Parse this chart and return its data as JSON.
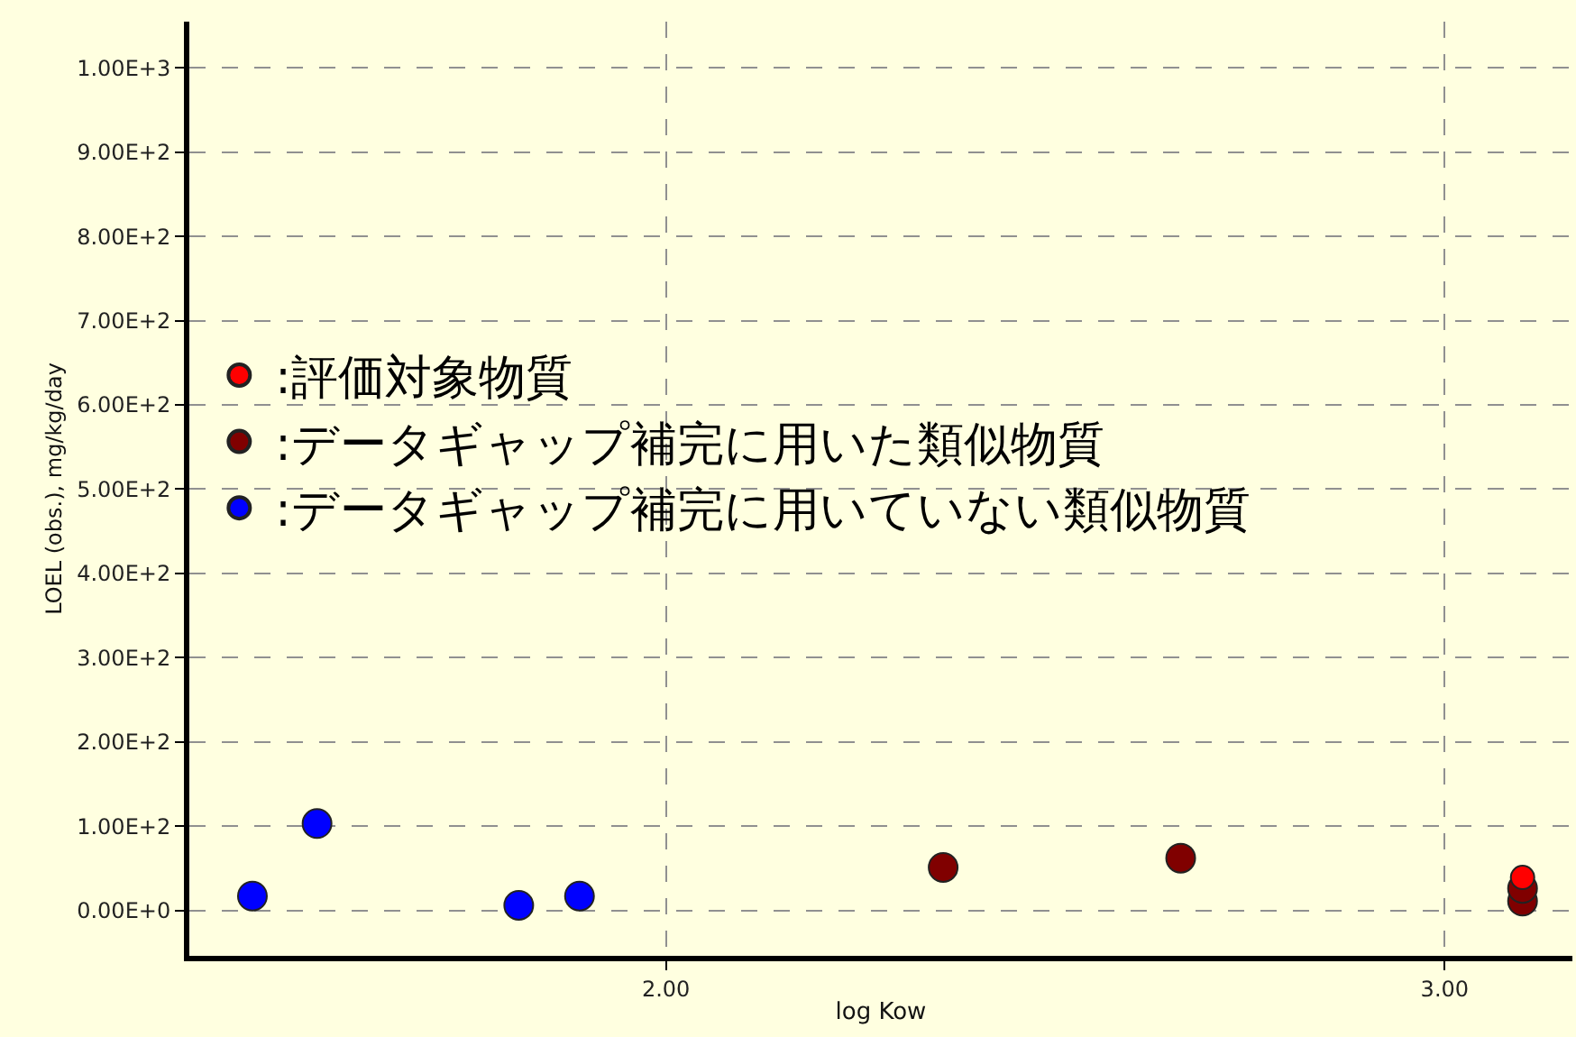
{
  "chart_data": {
    "type": "scatter",
    "xlabel": "log Kow",
    "ylabel": "LOEL (obs.), mg/kg/day",
    "xlim": [
      1.388,
      3.164
    ],
    "ylim": [
      -54,
      1055
    ],
    "xticks": [
      {
        "value": 2,
        "label": "2.00"
      },
      {
        "value": 3,
        "label": "3.00"
      }
    ],
    "yticks": [
      {
        "value": 0,
        "label": "0.00E+0"
      },
      {
        "value": 100,
        "label": "1.00E+2"
      },
      {
        "value": 200,
        "label": "2.00E+2"
      },
      {
        "value": 300,
        "label": "3.00E+2"
      },
      {
        "value": 400,
        "label": "4.00E+2"
      },
      {
        "value": 500,
        "label": "5.00E+2"
      },
      {
        "value": 600,
        "label": "6.00E+2"
      },
      {
        "value": 700,
        "label": "7.00E+2"
      },
      {
        "value": 800,
        "label": "8.00E+2"
      },
      {
        "value": 900,
        "label": "9.00E+2"
      },
      {
        "value": 1000,
        "label": "1.00E+3"
      }
    ],
    "grid": true,
    "marker": "circle",
    "legend": "left",
    "series": [
      {
        "name": ":評価対象物質",
        "color": "#ff0000",
        "x": [
          3.1
        ],
        "values": [
          39
        ]
      },
      {
        "name": ":データギャップ補完に用いた類似物質",
        "color": "#800000",
        "x": [
          2.356,
          2.661,
          3.1,
          3.1
        ],
        "values": [
          51,
          62,
          11,
          26
        ]
      },
      {
        "name": ":データギャップ補完に用いていない類似物質",
        "color": "#0000ff",
        "x": [
          1.469,
          1.552,
          1.811,
          1.889
        ],
        "values": [
          17,
          103,
          6,
          17
        ]
      }
    ]
  }
}
